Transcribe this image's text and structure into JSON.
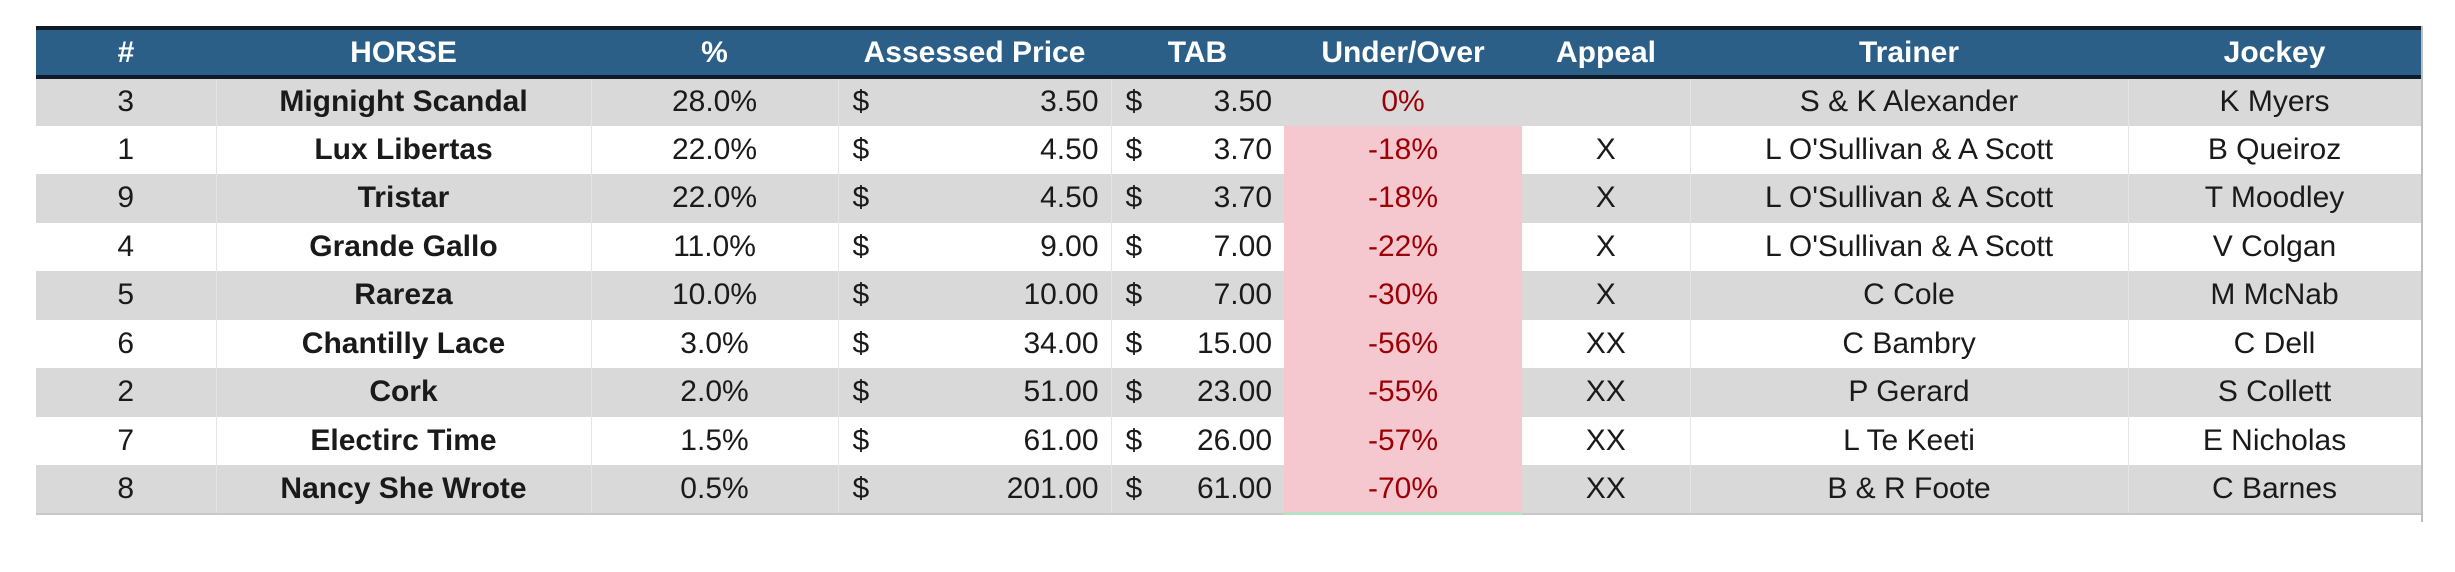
{
  "headers": {
    "num": "#",
    "horse": "HORSE",
    "pct": "%",
    "assessed_price": "Assessed Price",
    "tab": "TAB",
    "under_over": "Under/Over",
    "appeal": "Appeal",
    "trainer": "Trainer",
    "jockey": "Jockey"
  },
  "currency_symbol": "$",
  "colors": {
    "header_bg": "#2c5f87",
    "stripe": "#d9d9d9",
    "negative_fill": "#f4c8ce",
    "negative_text": "#9c0006"
  },
  "rows": [
    {
      "num": "3",
      "horse": "Mignight Scandal",
      "pct": "28.0%",
      "assessed": "3.50",
      "tab": "3.50",
      "under_over": "0%",
      "appeal": "",
      "trainer": "S & K Alexander",
      "jockey": "K Myers"
    },
    {
      "num": "1",
      "horse": "Lux Libertas",
      "pct": "22.0%",
      "assessed": "4.50",
      "tab": "3.70",
      "under_over": "-18%",
      "appeal": "X",
      "trainer": "L O'Sullivan & A Scott",
      "jockey": "B Queiroz"
    },
    {
      "num": "9",
      "horse": "Tristar",
      "pct": "22.0%",
      "assessed": "4.50",
      "tab": "3.70",
      "under_over": "-18%",
      "appeal": "X",
      "trainer": "L O'Sullivan & A Scott",
      "jockey": "T Moodley"
    },
    {
      "num": "4",
      "horse": "Grande Gallo",
      "pct": "11.0%",
      "assessed": "9.00",
      "tab": "7.00",
      "under_over": "-22%",
      "appeal": "X",
      "trainer": "L O'Sullivan & A Scott",
      "jockey": "V Colgan"
    },
    {
      "num": "5",
      "horse": "Rareza",
      "pct": "10.0%",
      "assessed": "10.00",
      "tab": "7.00",
      "under_over": "-30%",
      "appeal": "X",
      "trainer": "C Cole",
      "jockey": "M McNab"
    },
    {
      "num": "6",
      "horse": "Chantilly Lace",
      "pct": "3.0%",
      "assessed": "34.00",
      "tab": "15.00",
      "under_over": "-56%",
      "appeal": "XX",
      "trainer": "C Bambry",
      "jockey": "C Dell"
    },
    {
      "num": "2",
      "horse": "Cork",
      "pct": "2.0%",
      "assessed": "51.00",
      "tab": "23.00",
      "under_over": "-55%",
      "appeal": "XX",
      "trainer": "P Gerard",
      "jockey": "S Collett"
    },
    {
      "num": "7",
      "horse": "Electirc Time",
      "pct": "1.5%",
      "assessed": "61.00",
      "tab": "26.00",
      "under_over": "-57%",
      "appeal": "XX",
      "trainer": "L Te Keeti",
      "jockey": "E Nicholas"
    },
    {
      "num": "8",
      "horse": "Nancy She Wrote",
      "pct": "0.5%",
      "assessed": "201.00",
      "tab": "61.00",
      "under_over": "-70%",
      "appeal": "XX",
      "trainer": "B & R Foote",
      "jockey": "C Barnes"
    }
  ]
}
